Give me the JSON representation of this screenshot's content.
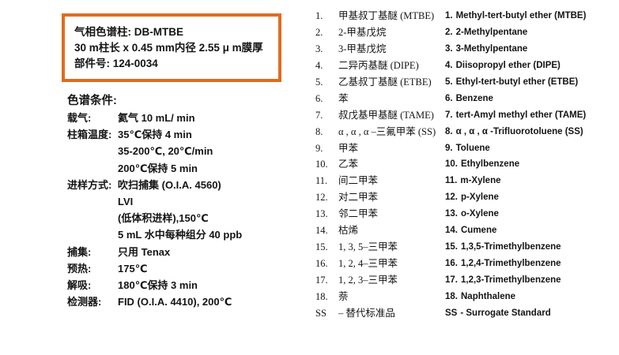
{
  "page": {
    "background_color": "#ffffff",
    "text_color": "#141414",
    "accent_orange": "#e06c1e"
  },
  "column_box": {
    "lines": [
      "气相色谱柱: DB-MTBE",
      "30 m柱长  x 0.45 mm内径  2.55 μ m膜厚",
      "部件号: 124-0034"
    ]
  },
  "conditions": {
    "title": "色谱条件:",
    "rows": [
      {
        "label": "载气:",
        "lines": [
          "氦气  10 mL/ min"
        ]
      },
      {
        "label": "柱箱温度:",
        "lines": [
          "35℃保持  4 min",
          "35-200℃, 20℃/min",
          "200℃保持  5 min"
        ]
      },
      {
        "label": "进样方式:",
        "lines": [
          "吹扫捕集  (O.I.A. 4560)",
          "LVI",
          "(低体积进样),150℃",
          "5 mL 水中每种组分  40 ppb"
        ]
      },
      {
        "label": "捕集:",
        "lines": [
          "只用  Tenax"
        ]
      },
      {
        "label": "预热:",
        "lines": [
          "175℃"
        ]
      },
      {
        "label": "解吸:",
        "lines": [
          "180℃保持  3 min"
        ]
      },
      {
        "label": "检测器:",
        "lines": [
          "FID (O.I.A. 4410), 200℃"
        ]
      }
    ]
  },
  "peaks_zh": [
    {
      "num": "1.",
      "name": "甲基叔丁基醚 (MTBE)"
    },
    {
      "num": "2.",
      "name": "2-甲基戊烷"
    },
    {
      "num": "3.",
      "name": "3-甲基戊烷"
    },
    {
      "num": "4.",
      "name": "二异丙基醚 (DIPE)"
    },
    {
      "num": "5.",
      "name": "乙基叔丁基醚 (ETBE)"
    },
    {
      "num": "6.",
      "name": "苯"
    },
    {
      "num": "7.",
      "name": "叔戊基甲基醚 (TAME)"
    },
    {
      "num": "8.",
      "name": "α , α , α –三氟甲苯 (SS)"
    },
    {
      "num": "9.",
      "name": "甲苯"
    },
    {
      "num": "10.",
      "name": "乙苯"
    },
    {
      "num": "11.",
      "name": "间二甲苯"
    },
    {
      "num": "12.",
      "name": "对二甲苯"
    },
    {
      "num": "13.",
      "name": "邻二甲苯"
    },
    {
      "num": "14.",
      "name": "枯烯"
    },
    {
      "num": "15.",
      "name": "1, 3, 5–三甲苯"
    },
    {
      "num": "16.",
      "name": "1, 2, 4–三甲苯"
    },
    {
      "num": "17.",
      "name": "1, 2, 3–三甲苯"
    },
    {
      "num": "18.",
      "name": "萘"
    },
    {
      "num": "SS",
      "name": "–  替代标准品"
    }
  ],
  "peaks_en": [
    {
      "num": "1.",
      "name": "Methyl-tert-butyl ether (MTBE)"
    },
    {
      "num": "2.",
      "name": "2-Methylpentane"
    },
    {
      "num": "3.",
      "name": "3-Methylpentane"
    },
    {
      "num": "4.",
      "name": "Diisopropyl ether (DIPE)"
    },
    {
      "num": "5.",
      "name": "Ethyl-tert-butyl ether (ETBE)"
    },
    {
      "num": "6.",
      "name": "Benzene"
    },
    {
      "num": "7.",
      "name": "tert-Amyl methyl ether (TAME)"
    },
    {
      "num": "8.",
      "name": "α , α , α -Trifluorotoluene (SS)"
    },
    {
      "num": "9.",
      "name": "Toluene"
    },
    {
      "num": "10.",
      "name": "Ethylbenzene"
    },
    {
      "num": "11.",
      "name": "m-Xylene"
    },
    {
      "num": "12.",
      "name": "p-Xylene"
    },
    {
      "num": "13.",
      "name": "o-Xylene"
    },
    {
      "num": "14.",
      "name": "Cumene"
    },
    {
      "num": "15.",
      "name": "1,3,5-Trimethylbenzene"
    },
    {
      "num": "16.",
      "name": "1,2,4-Trimethylbenzene"
    },
    {
      "num": "17.",
      "name": "1,2,3-Trimethylbenzene"
    },
    {
      "num": "18.",
      "name": "Naphthalene"
    },
    {
      "num": "SS",
      "name": "- Surrogate Standard"
    }
  ]
}
